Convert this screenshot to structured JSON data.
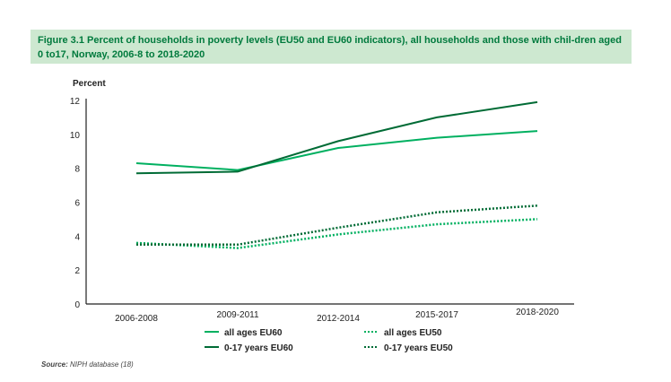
{
  "figure": {
    "title": "Figure 3.1 Percent of households in poverty levels (EU50 and EU60 indicators), all households and those with chil-dren aged 0 to17, Norway, 2006-8 to 2018-2020",
    "source_label": "Source:",
    "source_text": " NIPH database (18)"
  },
  "colors": {
    "light": "#00b060",
    "dark": "#006b35"
  },
  "chart_data": {
    "type": "line",
    "title": "Figure 3.1 Percent of households in poverty levels (EU50 and EU60 indicators), all households and those with children aged 0 to17, Norway, 2006-8 to 2018-2020",
    "xlabel": "",
    "ylabel": "Percent",
    "ylim": [
      0,
      12
    ],
    "yticks": [
      0,
      2,
      4,
      6,
      8,
      10,
      12
    ],
    "grid": false,
    "legend_position": "bottom",
    "categories": [
      "2006-2008",
      "2009-2011",
      "2012-2014",
      "2015-2017",
      "2018-2020"
    ],
    "series": [
      {
        "name": "all ages EU60",
        "style": "solid",
        "color": "light",
        "values": [
          8.3,
          7.9,
          9.2,
          9.8,
          10.2
        ]
      },
      {
        "name": "0-17 years EU60",
        "style": "solid",
        "color": "dark",
        "values": [
          7.7,
          7.8,
          9.6,
          11.0,
          11.9
        ]
      },
      {
        "name": "all ages EU50",
        "style": "dotted",
        "color": "light",
        "values": [
          3.6,
          3.3,
          4.1,
          4.7,
          5.0
        ]
      },
      {
        "name": "0-17 years EU50",
        "style": "dotted",
        "color": "dark",
        "values": [
          3.5,
          3.5,
          4.5,
          5.4,
          5.8
        ]
      }
    ]
  }
}
